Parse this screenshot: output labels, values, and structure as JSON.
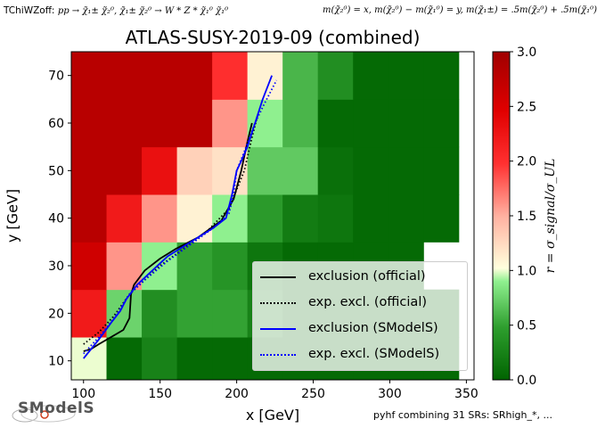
{
  "header": {
    "left_prefix": "TChiWZoff: ",
    "left_process": "pp → χ̃₁± χ̃₂⁰, χ̃₁± χ̃₂⁰ → W * Z * χ̃₁⁰ χ̃₁⁰",
    "right_masses": "m(χ̃₂⁰) = x, m(χ̃₂⁰) − m(χ̃₁⁰) = y, m(χ̃₁±) = .5m(χ̃₂⁰) + .5m(χ̃₁⁰)"
  },
  "footer": {
    "combination": "pyhf combining 31 SRs: SRhigh_*, ...",
    "logo_text": "SModelS"
  },
  "colors": {
    "official_line": "#000000",
    "smodels_line": "#0000ff",
    "colormap": [
      "#006400",
      "#ffffdd",
      "#ff0000",
      "#b00000"
    ]
  },
  "chart_data": {
    "type": "heatmap",
    "title": "ATLAS-SUSY-2019-09 (combined)",
    "xlabel": "x [GeV]",
    "ylabel": "y [GeV]",
    "colorbar_label": "r = σ_signal/σ_UL",
    "xlim": [
      92,
      355
    ],
    "ylim": [
      6,
      75
    ],
    "xticks": [
      100,
      150,
      200,
      250,
      300,
      350
    ],
    "yticks": [
      10,
      20,
      30,
      40,
      50,
      60,
      70
    ],
    "colorbar": {
      "range": [
        0.0,
        3.0
      ],
      "ticks": [
        "0.0",
        "0.5",
        "1.0",
        "1.5",
        "2.0",
        "2.5",
        "3.0"
      ]
    },
    "grid": false,
    "legend_position": "lower-right",
    "cell_size": {
      "dx": 23.0,
      "dy": 10.0
    },
    "cells": [
      {
        "x": 103.5,
        "y": 10,
        "r": 1.0
      },
      {
        "x": 126.5,
        "y": 10,
        "r": 0.05
      },
      {
        "x": 149.5,
        "y": 10,
        "r": 0.25
      },
      {
        "x": 172.5,
        "y": 10,
        "r": 0.05
      },
      {
        "x": 195.5,
        "y": 10,
        "r": 0.05
      },
      {
        "x": 218.5,
        "y": 10,
        "r": 0.05
      },
      {
        "x": 241.5,
        "y": 10,
        "r": 0.05
      },
      {
        "x": 264.5,
        "y": 10,
        "r": 0.05
      },
      {
        "x": 287.5,
        "y": 10,
        "r": 0.05
      },
      {
        "x": 310.5,
        "y": 10,
        "r": 0.05
      },
      {
        "x": 333.5,
        "y": 10,
        "r": 0.05
      },
      {
        "x": 103.5,
        "y": 20,
        "r": 2.2
      },
      {
        "x": 126.5,
        "y": 20,
        "r": 0.75
      },
      {
        "x": 149.5,
        "y": 20,
        "r": 0.35
      },
      {
        "x": 172.5,
        "y": 20,
        "r": 0.5
      },
      {
        "x": 195.5,
        "y": 20,
        "r": 0.5
      },
      {
        "x": 218.5,
        "y": 20,
        "r": 0.25
      },
      {
        "x": 241.5,
        "y": 20,
        "r": 0.05
      },
      {
        "x": 264.5,
        "y": 20,
        "r": 0.05
      },
      {
        "x": 287.5,
        "y": 20,
        "r": 0.05
      },
      {
        "x": 310.5,
        "y": 20,
        "r": 0.05
      },
      {
        "x": 333.5,
        "y": 20,
        "r": 0.05
      },
      {
        "x": 103.5,
        "y": 30,
        "r": 2.6
      },
      {
        "x": 126.5,
        "y": 30,
        "r": 1.6
      },
      {
        "x": 149.5,
        "y": 30,
        "r": 0.9
      },
      {
        "x": 172.5,
        "y": 30,
        "r": 0.5
      },
      {
        "x": 195.5,
        "y": 30,
        "r": 0.4
      },
      {
        "x": 218.5,
        "y": 30,
        "r": 0.15
      },
      {
        "x": 241.5,
        "y": 30,
        "r": 0.05
      },
      {
        "x": 264.5,
        "y": 30,
        "r": 0.05
      },
      {
        "x": 287.5,
        "y": 30,
        "r": 0.05
      },
      {
        "x": 310.5,
        "y": 30,
        "r": 0.05
      },
      {
        "x": 103.5,
        "y": 40,
        "r": 2.8
      },
      {
        "x": 126.5,
        "y": 40,
        "r": 2.2
      },
      {
        "x": 149.5,
        "y": 40,
        "r": 1.6
      },
      {
        "x": 172.5,
        "y": 40,
        "r": 1.1
      },
      {
        "x": 195.5,
        "y": 40,
        "r": 0.9
      },
      {
        "x": 218.5,
        "y": 40,
        "r": 0.45
      },
      {
        "x": 241.5,
        "y": 40,
        "r": 0.2
      },
      {
        "x": 264.5,
        "y": 40,
        "r": 0.15
      },
      {
        "x": 287.5,
        "y": 40,
        "r": 0.05
      },
      {
        "x": 310.5,
        "y": 40,
        "r": 0.05
      },
      {
        "x": 333.5,
        "y": 40,
        "r": 0.05
      },
      {
        "x": 103.5,
        "y": 50,
        "r": 2.8
      },
      {
        "x": 126.5,
        "y": 50,
        "r": 2.8
      },
      {
        "x": 149.5,
        "y": 50,
        "r": 2.3
      },
      {
        "x": 172.5,
        "y": 50,
        "r": 1.3
      },
      {
        "x": 195.5,
        "y": 50,
        "r": 1.2
      },
      {
        "x": 218.5,
        "y": 50,
        "r": 0.7
      },
      {
        "x": 241.5,
        "y": 50,
        "r": 0.7
      },
      {
        "x": 264.5,
        "y": 50,
        "r": 0.1
      },
      {
        "x": 287.5,
        "y": 50,
        "r": 0.05
      },
      {
        "x": 310.5,
        "y": 50,
        "r": 0.05
      },
      {
        "x": 333.5,
        "y": 50,
        "r": 0.05
      },
      {
        "x": 103.5,
        "y": 60,
        "r": 2.8
      },
      {
        "x": 126.5,
        "y": 60,
        "r": 2.8
      },
      {
        "x": 149.5,
        "y": 60,
        "r": 2.8
      },
      {
        "x": 172.5,
        "y": 60,
        "r": 2.8
      },
      {
        "x": 195.5,
        "y": 60,
        "r": 1.6
      },
      {
        "x": 218.5,
        "y": 60,
        "r": 0.9
      },
      {
        "x": 241.5,
        "y": 60,
        "r": 0.6
      },
      {
        "x": 264.5,
        "y": 60,
        "r": 0.05
      },
      {
        "x": 287.5,
        "y": 60,
        "r": 0.05
      },
      {
        "x": 310.5,
        "y": 60,
        "r": 0.05
      },
      {
        "x": 333.5,
        "y": 60,
        "r": 0.05
      },
      {
        "x": 103.5,
        "y": 70,
        "r": 2.8
      },
      {
        "x": 126.5,
        "y": 70,
        "r": 2.8
      },
      {
        "x": 149.5,
        "y": 70,
        "r": 2.8
      },
      {
        "x": 172.5,
        "y": 70,
        "r": 2.8
      },
      {
        "x": 195.5,
        "y": 70,
        "r": 2.0
      },
      {
        "x": 218.5,
        "y": 70,
        "r": 1.1
      },
      {
        "x": 241.5,
        "y": 70,
        "r": 0.6
      },
      {
        "x": 264.5,
        "y": 70,
        "r": 0.35
      },
      {
        "x": 287.5,
        "y": 70,
        "r": 0.05
      },
      {
        "x": 310.5,
        "y": 70,
        "r": 0.05
      },
      {
        "x": 333.5,
        "y": 70,
        "r": 0.05
      }
    ],
    "series": [
      {
        "name": "exclusion (official)",
        "style": "solid",
        "color": "#000000",
        "points": [
          [
            100,
            12
          ],
          [
            105,
            12.5
          ],
          [
            110,
            13.5
          ],
          [
            118,
            15
          ],
          [
            126,
            16.5
          ],
          [
            130,
            19
          ],
          [
            131,
            24
          ],
          [
            133,
            26
          ],
          [
            140,
            29
          ],
          [
            150,
            31.5
          ],
          [
            160,
            33.5
          ],
          [
            175,
            36
          ],
          [
            190,
            39.5
          ],
          [
            198,
            44
          ],
          [
            203,
            50
          ],
          [
            207,
            56
          ],
          [
            210,
            60
          ]
        ]
      },
      {
        "name": "exp. excl. (official)",
        "style": "dotted",
        "color": "#000000",
        "points": [
          [
            100,
            13.5
          ],
          [
            110,
            16
          ],
          [
            120,
            19.5
          ],
          [
            130,
            24
          ],
          [
            140,
            27
          ],
          [
            150,
            30
          ],
          [
            165,
            33.5
          ],
          [
            180,
            37
          ],
          [
            195,
            42
          ],
          [
            205,
            50
          ],
          [
            210,
            57
          ],
          [
            214,
            62
          ]
        ]
      },
      {
        "name": "exclusion (SModelS)",
        "style": "solid",
        "color": "#0000ff",
        "points": [
          [
            100,
            10.5
          ],
          [
            110,
            14.5
          ],
          [
            118,
            18
          ],
          [
            124,
            20.5
          ],
          [
            128,
            23
          ],
          [
            135,
            26
          ],
          [
            145,
            29
          ],
          [
            155,
            32
          ],
          [
            170,
            35
          ],
          [
            185,
            38
          ],
          [
            193,
            40
          ],
          [
            197,
            45
          ],
          [
            200,
            50
          ],
          [
            203,
            52
          ],
          [
            207,
            55
          ],
          [
            212,
            60
          ],
          [
            217,
            65
          ],
          [
            223,
            70
          ]
        ]
      },
      {
        "name": "exp. excl. (SModelS)",
        "style": "dotted",
        "color": "#0000ff",
        "points": [
          [
            100,
            11.5
          ],
          [
            110,
            15
          ],
          [
            120,
            19
          ],
          [
            130,
            24
          ],
          [
            140,
            27
          ],
          [
            155,
            31
          ],
          [
            170,
            34.5
          ],
          [
            185,
            38
          ],
          [
            195,
            41
          ],
          [
            198,
            45
          ],
          [
            200,
            50
          ],
          [
            205,
            54
          ],
          [
            212,
            60
          ],
          [
            218,
            64
          ],
          [
            226,
            69
          ]
        ]
      }
    ]
  }
}
